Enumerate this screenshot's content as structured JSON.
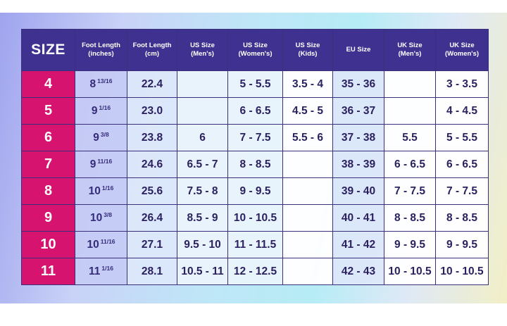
{
  "headers": [
    {
      "line1": "SIZE",
      "line2": ""
    },
    {
      "line1": "Foot Length",
      "line2": "(inches)"
    },
    {
      "line1": "Foot Length",
      "line2": "(cm)"
    },
    {
      "line1": "US Size",
      "line2": "(Men's)"
    },
    {
      "line1": "US Size",
      "line2": "(Women's)"
    },
    {
      "line1": "US Size",
      "line2": "(Kids)"
    },
    {
      "line1": "EU Size",
      "line2": ""
    },
    {
      "line1": "UK Size",
      "line2": "(Men's)"
    },
    {
      "line1": "UK Size",
      "line2": "(Women's)"
    }
  ],
  "rows": [
    {
      "size": "4",
      "inch_whole": "8",
      "inch_frac": "13/16",
      "cm": "22.4",
      "us_men": "",
      "us_women": "5 - 5.5",
      "us_kids": "3.5 - 4",
      "eu": "35 - 36",
      "uk_men": "",
      "uk_women": "3 - 3.5"
    },
    {
      "size": "5",
      "inch_whole": "9",
      "inch_frac": "1/16",
      "cm": "23.0",
      "us_men": "",
      "us_women": "6 - 6.5",
      "us_kids": "4.5 - 5",
      "eu": "36 - 37",
      "uk_men": "",
      "uk_women": "4 - 4.5"
    },
    {
      "size": "6",
      "inch_whole": "9",
      "inch_frac": "3/8",
      "cm": "23.8",
      "us_men": "6",
      "us_women": "7 - 7.5",
      "us_kids": "5.5 - 6",
      "eu": "37 - 38",
      "uk_men": "5.5",
      "uk_women": "5 - 5.5"
    },
    {
      "size": "7",
      "inch_whole": "9",
      "inch_frac": "11/16",
      "cm": "24.6",
      "us_men": "6.5 - 7",
      "us_women": "8 - 8.5",
      "us_kids": "",
      "eu": "38 - 39",
      "uk_men": "6 - 6.5",
      "uk_women": "6 - 6.5"
    },
    {
      "size": "8",
      "inch_whole": "10",
      "inch_frac": "1/16",
      "cm": "25.6",
      "us_men": "7.5 - 8",
      "us_women": "9 - 9.5",
      "us_kids": "",
      "eu": "39 - 40",
      "uk_men": "7 - 7.5",
      "uk_women": "7 - 7.5"
    },
    {
      "size": "9",
      "inch_whole": "10",
      "inch_frac": "3/8",
      "cm": "26.4",
      "us_men": "8.5 - 9",
      "us_women": "10 - 10.5",
      "us_kids": "",
      "eu": "40 - 41",
      "uk_men": "8 - 8.5",
      "uk_women": "8 - 8.5"
    },
    {
      "size": "10",
      "inch_whole": "10",
      "inch_frac": "11/16",
      "cm": "27.1",
      "us_men": "9.5 - 10",
      "us_women": "11 - 11.5",
      "us_kids": "",
      "eu": "41 - 42",
      "uk_men": "9 - 9.5",
      "uk_women": "9 - 9.5"
    },
    {
      "size": "11",
      "inch_whole": "11",
      "inch_frac": "1/16",
      "cm": "28.1",
      "us_men": "10.5 - 11",
      "us_women": "12 - 12.5",
      "us_kids": "",
      "eu": "42 - 43",
      "uk_men": "10 - 10.5",
      "uk_women": "10 - 10.5"
    }
  ],
  "colors": {
    "header_bg": "#3e3190",
    "size_column_bg": "#d6136f",
    "text": "#2b2160"
  }
}
